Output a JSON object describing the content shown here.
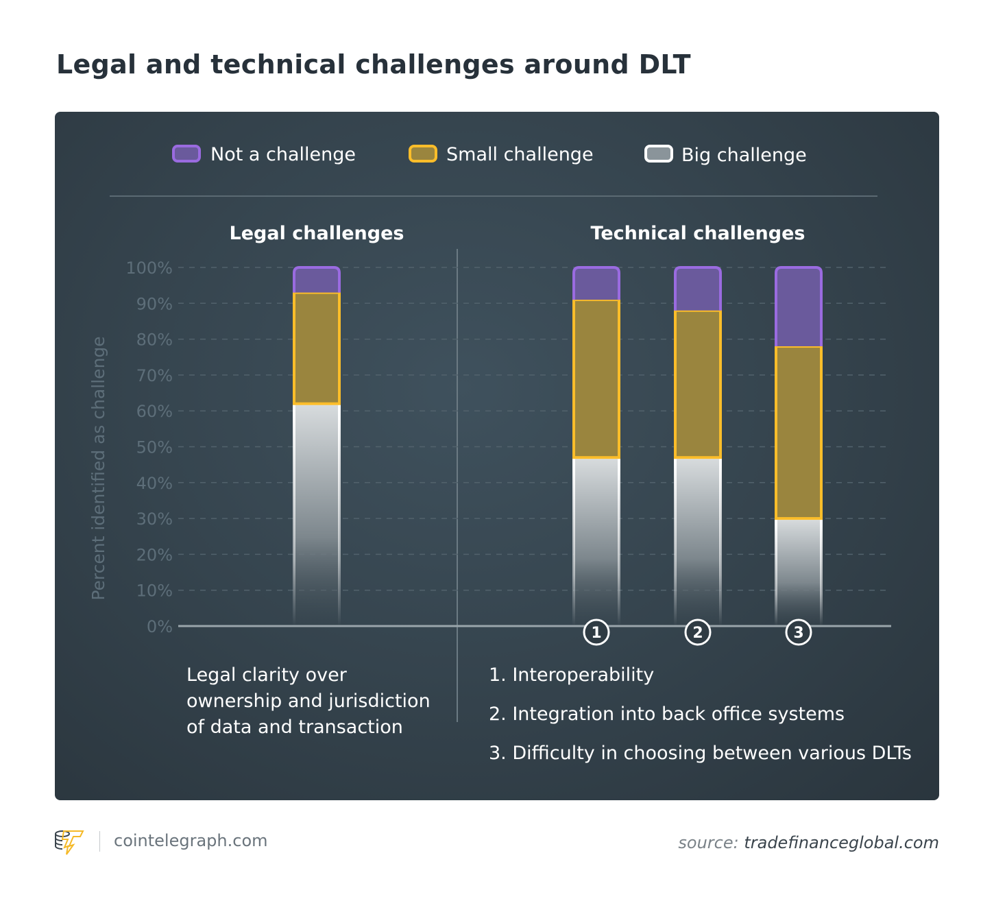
{
  "title": "Legal and technical challenges around DLT",
  "footer": {
    "site": "cointelegraph.com",
    "source_prefix": "source:",
    "source": "tradefinanceglobal.com"
  },
  "colors": {
    "not": "#9a6be0",
    "small": "#fbbd2a",
    "big": "#ffffff",
    "not_fill": "#6a5a9c",
    "small_fill": "#9a853e"
  },
  "chart_data": {
    "type": "bar",
    "stacked": true,
    "ylabel": "Percent identified as challenge",
    "ylim": [
      0,
      100
    ],
    "yticks": [
      "0%",
      "10%",
      "20%",
      "30%",
      "40%",
      "50%",
      "60%",
      "70%",
      "80%",
      "90%",
      "100%"
    ],
    "grid": true,
    "legend_position": "top",
    "sections": [
      "Legal challenges",
      "Technical challenges"
    ],
    "categories": [
      "Legal clarity over ownership and jurisdiction of data and transaction",
      "1",
      "2",
      "3"
    ],
    "category_notes": [
      "1. Interoperability",
      "2. Integration into back office systems",
      "3. Difficulty in choosing between various DLTs"
    ],
    "legal_desc_lines": [
      "Legal clarity over",
      "ownership and jurisdiction",
      "of data and transaction"
    ],
    "series": [
      {
        "name": "Big challenge",
        "values": [
          62,
          47,
          47,
          30
        ]
      },
      {
        "name": "Small challenge",
        "values": [
          31,
          44,
          41,
          48
        ]
      },
      {
        "name": "Not a challenge",
        "values": [
          7,
          9,
          12,
          22
        ]
      }
    ]
  }
}
